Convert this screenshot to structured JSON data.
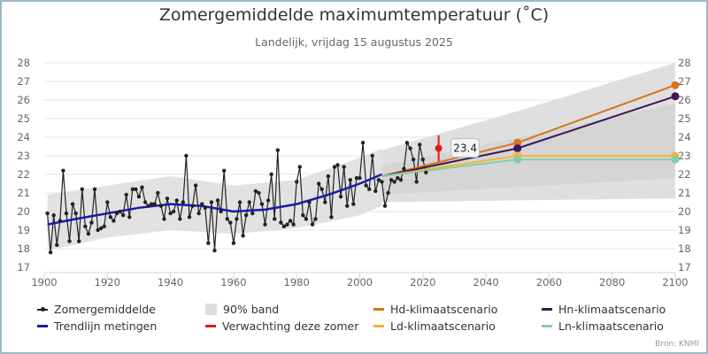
{
  "title": "Zomergemiddelde maximumtemperatuur (˚C)",
  "subtitle": "Landelijk, vrijdag 15 augustus 2025",
  "source": "Bron: KNMI",
  "legend": [
    {
      "label": "Zomergemiddelde",
      "type": "dotline",
      "color": "#222222"
    },
    {
      "label": "90% band",
      "type": "box",
      "color": "#dddddd"
    },
    {
      "label": "Hd-klimaatscenario",
      "type": "line",
      "color": "#d5751c"
    },
    {
      "label": "Hn-klimaatscenario",
      "type": "line",
      "color": "#3d1659"
    },
    {
      "label": "Trendlijn metingen",
      "type": "line",
      "color": "#1a1aaa"
    },
    {
      "label": "Verwachting deze zomer",
      "type": "line",
      "color": "#e31a1c"
    },
    {
      "label": "Ld-klimaatscenario",
      "type": "line",
      "color": "#f2b632"
    },
    {
      "label": "Ln-klimaatscenario",
      "type": "line",
      "color": "#7fcfa8"
    }
  ],
  "chart_data": {
    "type": "line",
    "title": "Zomergemiddelde maximumtemperatuur (˚C)",
    "subtitle": "Landelijk, vrijdag 15 augustus 2025",
    "xlabel": "",
    "ylabel": "",
    "xlim": [
      1900,
      2100
    ],
    "ylim": [
      17,
      28
    ],
    "xticks": [
      1900,
      1920,
      1940,
      1960,
      1980,
      2000,
      2020,
      2040,
      2060,
      2080,
      2100
    ],
    "yticks": [
      17,
      18,
      19,
      20,
      21,
      22,
      23,
      24,
      25,
      26,
      27,
      28
    ],
    "grid": true,
    "legend_position": "bottom",
    "series": [
      {
        "name": "Zomergemiddelde",
        "color": "#222222",
        "x_start": 1901,
        "values": [
          19.9,
          17.8,
          19.8,
          18.2,
          19.5,
          22.2,
          19.9,
          18.4,
          20.4,
          19.9,
          18.4,
          21.2,
          19.2,
          18.8,
          19.4,
          21.2,
          19.0,
          19.1,
          19.2,
          20.5,
          19.7,
          19.5,
          19.9,
          20.0,
          19.8,
          20.9,
          19.7,
          21.2,
          21.2,
          20.8,
          21.3,
          20.5,
          20.3,
          20.4,
          20.4,
          21.0,
          20.3,
          19.6,
          20.7,
          19.9,
          20.0,
          20.6,
          19.6,
          20.5,
          23.0,
          19.7,
          20.3,
          21.4,
          19.9,
          20.4,
          20.2,
          18.3,
          20.5,
          17.9,
          20.6,
          20.0,
          22.2,
          19.6,
          19.4,
          18.3,
          19.6,
          20.5,
          18.7,
          19.8,
          20.5,
          19.9,
          21.1,
          21.0,
          20.4,
          19.3,
          20.6,
          22.0,
          19.6,
          23.3,
          19.4,
          19.2,
          19.3,
          19.5,
          19.3,
          21.6,
          22.4,
          19.8,
          19.6,
          20.5,
          19.3,
          19.6,
          21.5,
          21.2,
          20.5,
          21.9,
          19.7,
          22.4,
          22.5,
          20.8,
          22.4,
          20.3,
          21.7,
          20.4,
          21.8,
          21.8,
          23.7,
          21.4,
          21.2,
          23.0,
          21.1,
          21.7,
          21.6,
          20.3,
          21.0,
          21.7,
          21.6,
          21.8,
          21.7,
          22.3,
          23.7,
          23.4,
          22.8,
          21.6,
          23.6,
          22.8,
          22.1
        ]
      },
      {
        "name": "Trendlijn metingen",
        "color": "#1a1aaa",
        "x": [
          1901,
          1910,
          1920,
          1930,
          1940,
          1950,
          1960,
          1970,
          1980,
          1990,
          2000,
          2007
        ],
        "values": [
          19.3,
          19.6,
          19.9,
          20.2,
          20.4,
          20.3,
          20.0,
          20.1,
          20.4,
          20.9,
          21.5,
          22.0
        ]
      },
      {
        "name": "90% band (metingen)",
        "type": "band",
        "color": "#dddddd",
        "x": [
          1901,
          1920,
          1940,
          1960,
          1980,
          2000,
          2007
        ],
        "low": [
          17.9,
          18.6,
          19.0,
          18.8,
          19.1,
          19.8,
          20.3
        ],
        "high": [
          20.9,
          21.4,
          21.9,
          21.4,
          21.7,
          22.9,
          23.4
        ]
      },
      {
        "name": "90% band (scenario)",
        "type": "band",
        "color": "#d9d9d9",
        "x": [
          2007,
          2050,
          2100
        ],
        "low": [
          20.5,
          20.6,
          20.7
        ],
        "high": [
          23.3,
          25.4,
          28.0
        ]
      },
      {
        "name": "Hd-klimaatscenario",
        "color": "#d5751c",
        "x": [
          2007,
          2050,
          2100
        ],
        "values": [
          21.9,
          23.7,
          26.8
        ]
      },
      {
        "name": "Hn-klimaatscenario",
        "color": "#3d1659",
        "x": [
          2007,
          2050,
          2100
        ],
        "values": [
          21.9,
          23.4,
          26.2
        ]
      },
      {
        "name": "Ld-klimaatscenario",
        "color": "#f2b632",
        "x": [
          2007,
          2050,
          2100
        ],
        "values": [
          21.9,
          23.0,
          23.0
        ]
      },
      {
        "name": "Ln-klimaatscenario",
        "color": "#7fcfa8",
        "x": [
          2007,
          2050,
          2100
        ],
        "values": [
          21.9,
          22.8,
          22.8
        ]
      },
      {
        "name": "Verwachting deze zomer",
        "color": "#e31a1c",
        "x": [
          2025
        ],
        "values": [
          23.4
        ],
        "range": [
          22.7,
          24.1
        ]
      }
    ],
    "annotations": [
      {
        "x": 2025,
        "y": 23.4,
        "text": "23.4"
      }
    ]
  }
}
